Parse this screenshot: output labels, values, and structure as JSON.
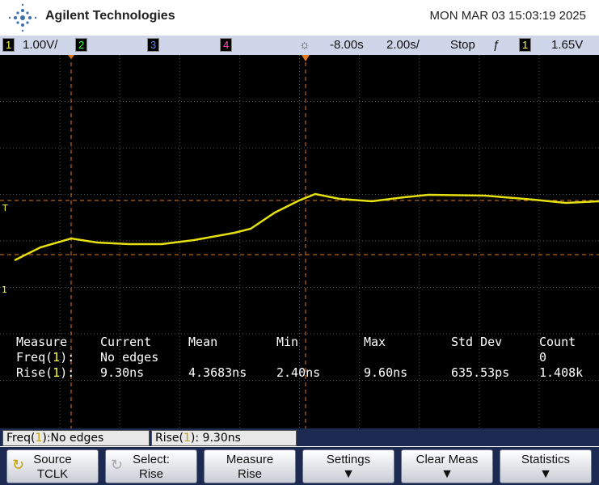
{
  "header": {
    "brand": "Agilent Technologies",
    "datetime": "MON MAR 03 15:03:19 2025"
  },
  "status_bar": {
    "ch1": "1",
    "ch1_scale": "1.00V/",
    "ch2": "2",
    "ch3": "3",
    "ch4": "4",
    "time_offset": "-8.00s",
    "time_scale": "2.00s/",
    "run_state": "Stop",
    "trigger_channel": "1",
    "trigger_level": "1.65V"
  },
  "markers": {
    "trigger": "T",
    "channel": "1"
  },
  "measurements": {
    "headers": [
      "Measure",
      "Current",
      "Mean",
      "Min",
      "Max",
      "Std Dev",
      "Count"
    ],
    "rows": [
      {
        "prefix": "Freq(",
        "channel": "1",
        "suffix": "):",
        "cells": [
          "No edges",
          "",
          "",
          "",
          "",
          "0"
        ]
      },
      {
        "prefix": "Rise(",
        "channel": "1",
        "suffix": "):",
        "cells": [
          "9.30ns",
          "4.3683ns",
          "2.40ns",
          "9.60ns",
          "635.53ps",
          "1.408k"
        ]
      }
    ]
  },
  "status_line": [
    {
      "prefix": "Freq(",
      "channel": "1",
      "suffix": "):No edges"
    },
    {
      "prefix": "Rise(",
      "channel": "1",
      "suffix": "): 9.30ns"
    }
  ],
  "softkeys": [
    {
      "line1": "Source",
      "line2": "TCLK"
    },
    {
      "line1": "Select:",
      "line2": "Rise"
    },
    {
      "line1": "Measure",
      "line2": "Rise"
    },
    {
      "line1": "Settings",
      "line2": ""
    },
    {
      "line1": "Clear Meas",
      "line2": ""
    },
    {
      "line1": "Statistics",
      "line2": ""
    }
  ]
}
